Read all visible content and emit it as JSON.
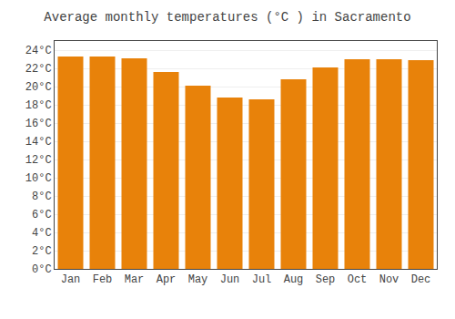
{
  "chart_data": {
    "type": "bar",
    "title": "Average monthly temperatures (°C ) in Sacramento",
    "categories": [
      "Jan",
      "Feb",
      "Mar",
      "Apr",
      "May",
      "Jun",
      "Jul",
      "Aug",
      "Sep",
      "Oct",
      "Nov",
      "Dec"
    ],
    "values": [
      23.3,
      23.3,
      23.1,
      21.6,
      20.1,
      18.8,
      18.6,
      20.8,
      22.1,
      23.0,
      23.0,
      22.9
    ],
    "color": "#E8820A",
    "ylim": [
      0,
      25
    ],
    "yticks": [
      {
        "value": 0,
        "label": "0°C"
      },
      {
        "value": 2,
        "label": "2°C"
      },
      {
        "value": 4,
        "label": "4°C"
      },
      {
        "value": 6,
        "label": "6°C"
      },
      {
        "value": 8,
        "label": "8°C"
      },
      {
        "value": 10,
        "label": "10°C"
      },
      {
        "value": 12,
        "label": "12°C"
      },
      {
        "value": 14,
        "label": "14°C"
      },
      {
        "value": 16,
        "label": "16°C"
      },
      {
        "value": 18,
        "label": "18°C"
      },
      {
        "value": 20,
        "label": "20°C"
      },
      {
        "value": 22,
        "label": "22°C"
      },
      {
        "value": 24,
        "label": "24°C"
      }
    ],
    "grid": true
  }
}
